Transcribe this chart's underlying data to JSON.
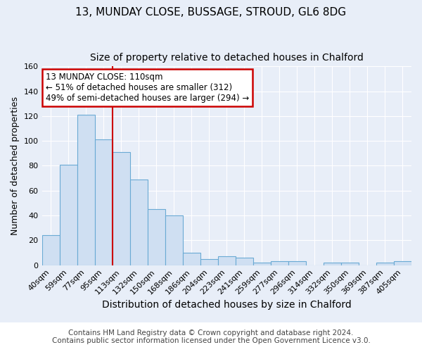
{
  "title1": "13, MUNDAY CLOSE, BUSSAGE, STROUD, GL6 8DG",
  "title2": "Size of property relative to detached houses in Chalford",
  "xlabel": "Distribution of detached houses by size in Chalford",
  "ylabel": "Number of detached properties",
  "footer1": "Contains HM Land Registry data © Crown copyright and database right 2024.",
  "footer2": "Contains public sector information licensed under the Open Government Licence v3.0.",
  "bar_labels": [
    "40sqm",
    "59sqm",
    "77sqm",
    "95sqm",
    "113sqm",
    "132sqm",
    "150sqm",
    "168sqm",
    "186sqm",
    "204sqm",
    "223sqm",
    "241sqm",
    "259sqm",
    "277sqm",
    "296sqm",
    "314sqm",
    "332sqm",
    "350sqm",
    "369sqm",
    "387sqm",
    "405sqm"
  ],
  "bar_values": [
    24,
    81,
    121,
    101,
    91,
    69,
    45,
    40,
    10,
    5,
    7,
    6,
    2,
    3,
    3,
    0,
    2,
    2,
    0,
    2,
    3
  ],
  "bar_color": "#cfdff2",
  "bar_edgecolor": "#6aaad4",
  "background_color": "#e8eef8",
  "plot_bg_color": "#e8eef8",
  "grid_color": "#ffffff",
  "vline_position": 3.5,
  "vline_color": "#cc0000",
  "annotation_title": "13 MUNDAY CLOSE: 110sqm",
  "annotation_line1": "← 51% of detached houses are smaller (312)",
  "annotation_line2": "49% of semi-detached houses are larger (294) →",
  "annotation_box_edgecolor": "#cc0000",
  "annotation_box_facecolor": "#ffffff",
  "ylim": [
    0,
    160
  ],
  "yticks": [
    0,
    20,
    40,
    60,
    80,
    100,
    120,
    140,
    160
  ],
  "title1_fontsize": 11,
  "title2_fontsize": 10,
  "xlabel_fontsize": 10,
  "ylabel_fontsize": 9,
  "tick_fontsize": 8,
  "footer_fontsize": 7.5
}
